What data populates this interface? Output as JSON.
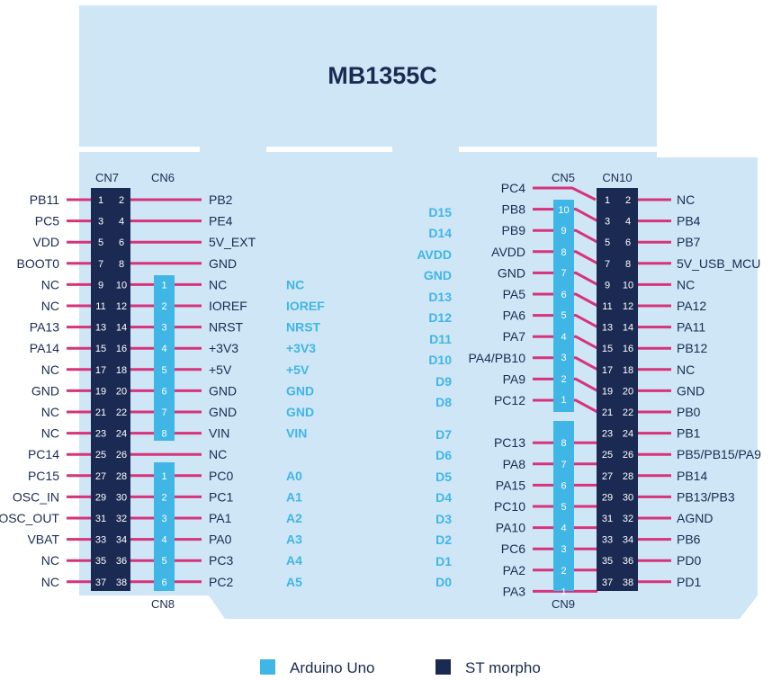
{
  "board_title": "MB1355C",
  "colors": {
    "board": "#cfe6f6",
    "morpho": "#1b2a52",
    "arduino": "#40b6e6",
    "wire": "#d6337a",
    "label": "#1b2a52",
    "arduino_label": "#40b6e6"
  },
  "connectors": {
    "cn7": "CN7",
    "cn6": "CN6",
    "cn8": "CN8",
    "cn5": "CN5",
    "cn10": "CN10",
    "cn9": "CN9"
  },
  "cn7_left_labels": [
    "PB11",
    "PC5",
    "VDD",
    "BOOT0",
    "NC",
    "NC",
    "PA13",
    "PA14",
    "NC",
    "GND",
    "NC",
    "NC",
    "PC14",
    "PC15",
    "OSC_IN",
    "OSC_OUT",
    "VBAT",
    "NC",
    "NC"
  ],
  "cn7_right_labels": [
    "PB2",
    "PE4",
    "5V_EXT",
    "GND",
    "NC",
    "IOREF",
    "NRST",
    "+3V3",
    "+5V",
    "GND",
    "GND",
    "VIN",
    "NC",
    "PC0",
    "PC1",
    "PA1",
    "PA0",
    "PC3",
    "PC2"
  ],
  "arduino_left_labels": [
    "",
    "",
    "",
    "",
    "NC",
    "IOREF",
    "NRST",
    "+3V3",
    "+5V",
    "GND",
    "GND",
    "VIN",
    "",
    "A0",
    "A1",
    "A2",
    "A3",
    "A4",
    "A5"
  ],
  "cn6_pins": [
    "1",
    "2",
    "3",
    "4",
    "5",
    "6",
    "7",
    "8"
  ],
  "cn8_pins": [
    "1",
    "2",
    "3",
    "4",
    "5",
    "6"
  ],
  "cn10_left_labels": [
    "PC4",
    "PB8",
    "PB9",
    "AVDD",
    "GND",
    "PA5",
    "PA6",
    "PA7",
    "PA4/PB10",
    "PA9",
    "PC12",
    "",
    "PC13",
    "PA8",
    "PA15",
    "PC10",
    "PA10",
    "PC6",
    "PA2",
    "PA3"
  ],
  "cn10_right_labels": [
    "NC",
    "PB4",
    "PB7",
    "5V_USB_MCU",
    "NC",
    "PA12",
    "PA11",
    "PB12",
    "NC",
    "GND",
    "PB0",
    "PB1",
    "PB5/PB15/PA9",
    "PB14",
    "PB13/PB3",
    "AGND",
    "PB6",
    "PD0",
    "PD1"
  ],
  "arduino_right_labels": [
    "D15",
    "D14",
    "AVDD",
    "GND",
    "D13",
    "D12",
    "D11",
    "D10",
    "D9",
    "D8",
    "D7",
    "D6",
    "D5",
    "D4",
    "D3",
    "D2",
    "D1",
    "D0"
  ],
  "cn5_pins": [
    "10",
    "9",
    "8",
    "7",
    "6",
    "5",
    "4",
    "3",
    "2",
    "1"
  ],
  "cn9_pins": [
    "8",
    "7",
    "6",
    "5",
    "4",
    "3",
    "2",
    "1"
  ],
  "legend": {
    "arduino": "Arduino Uno",
    "morpho": "ST morpho"
  }
}
